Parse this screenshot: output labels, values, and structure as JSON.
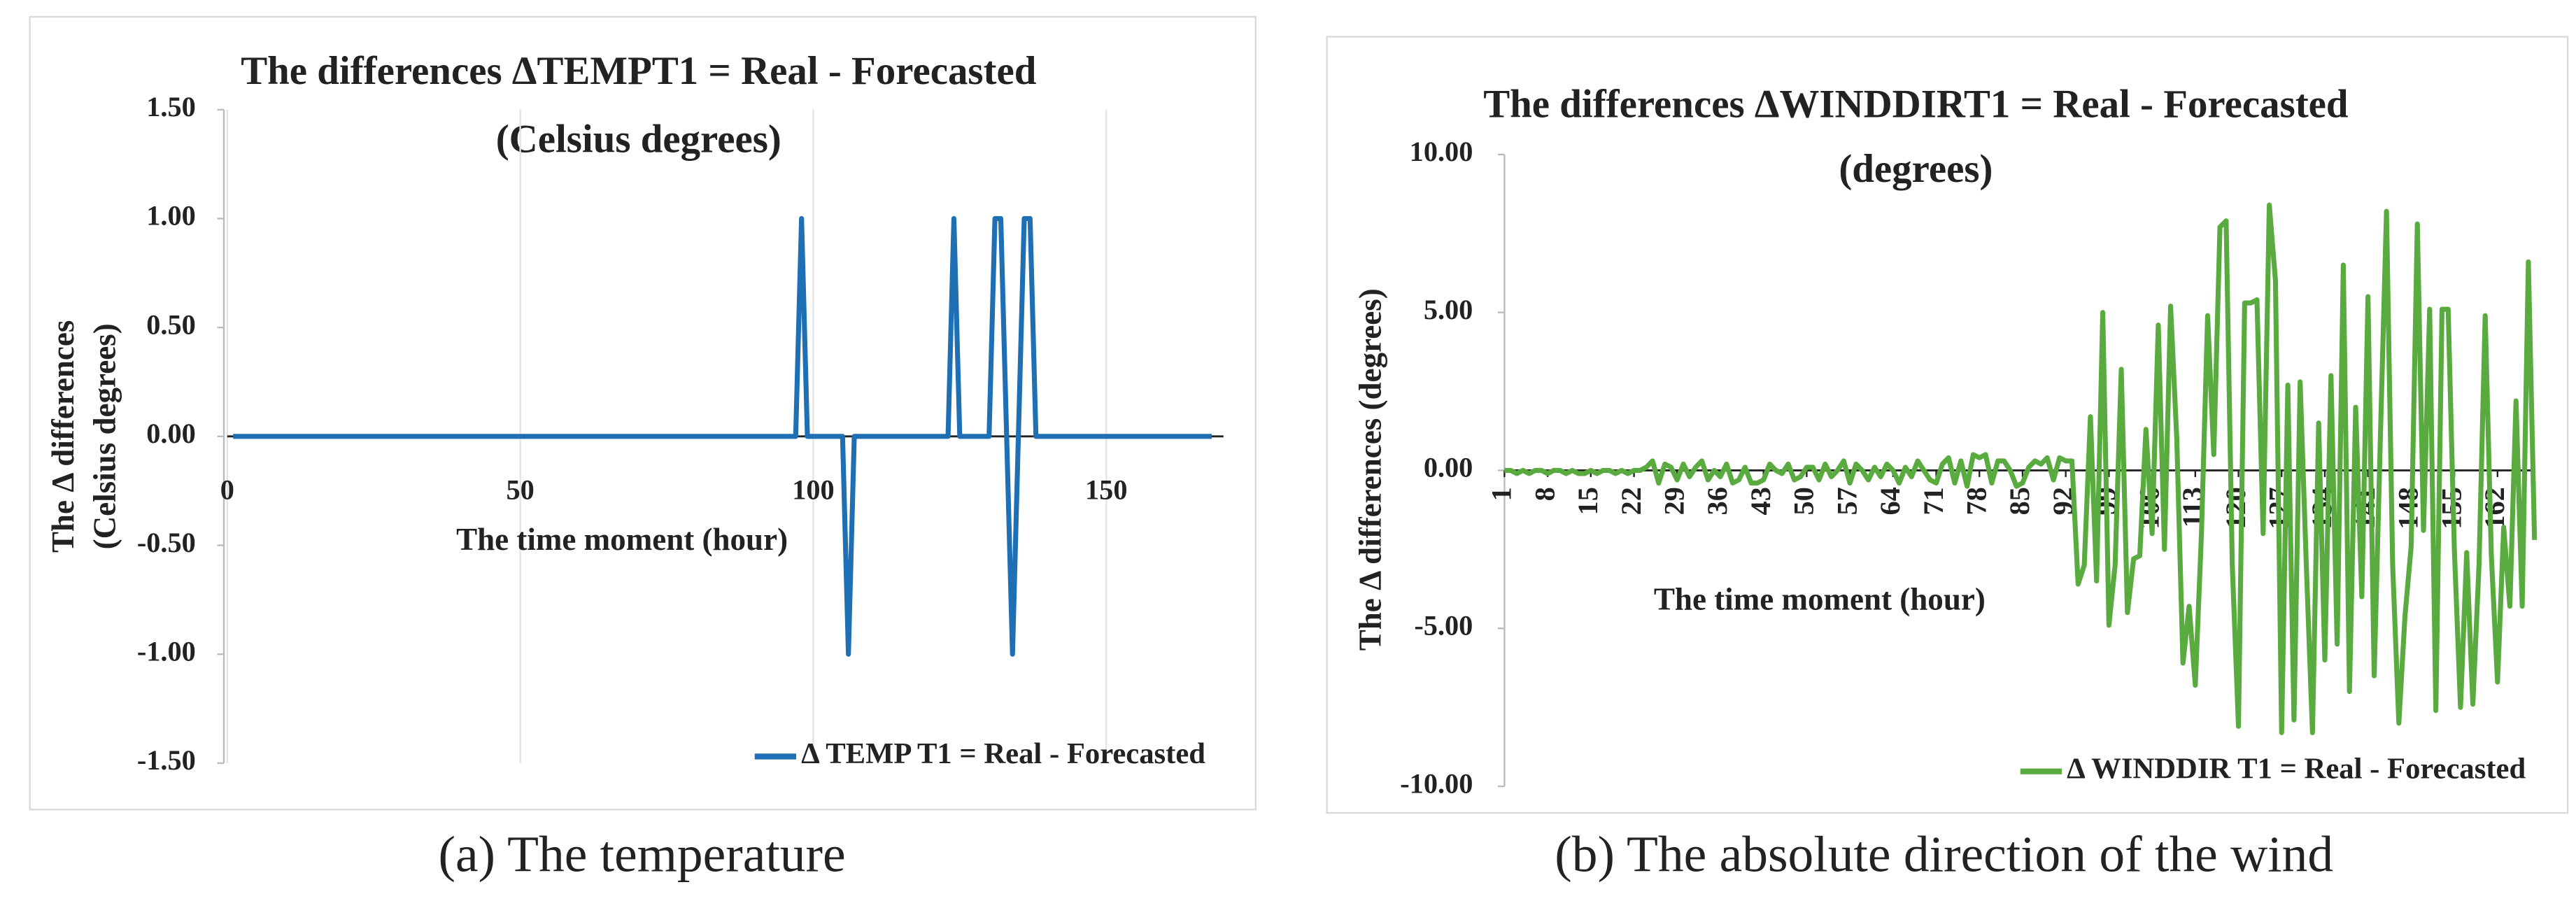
{
  "chart_data": [
    {
      "type": "line",
      "title": "The differences ΔTEMPT1 = Real - Forecasted",
      "subtitle": "(Celsius degrees)",
      "xlabel": "The time moment (hour)",
      "ylabel": [
        "The Δ differences",
        "(Celsius degrees)"
      ],
      "caption": "(a) The temperature",
      "xlim": [
        0,
        170
      ],
      "xticks": [
        0,
        50,
        100,
        150
      ],
      "ylim": [
        -1.5,
        1.5
      ],
      "yticks": [
        {
          "value": 1.5,
          "label": "1.50"
        },
        {
          "value": 1,
          "label": "1.00"
        },
        {
          "value": 0.5,
          "label": "0.50"
        },
        {
          "value": 0,
          "label": "0.00"
        },
        {
          "value": -0.5,
          "label": "-0.50"
        },
        {
          "value": -1,
          "label": "-1.00"
        },
        {
          "value": -1.5,
          "label": "-1.50"
        }
      ],
      "grid": "x",
      "legend": "lower right",
      "x": [
        1,
        2,
        3,
        4,
        5,
        6,
        7,
        8,
        9,
        10,
        11,
        12,
        13,
        14,
        15,
        16,
        17,
        18,
        19,
        20,
        21,
        22,
        23,
        24,
        25,
        26,
        27,
        28,
        29,
        30,
        31,
        32,
        33,
        34,
        35,
        36,
        37,
        38,
        39,
        40,
        41,
        42,
        43,
        44,
        45,
        46,
        47,
        48,
        49,
        50,
        51,
        52,
        53,
        54,
        55,
        56,
        57,
        58,
        59,
        60,
        61,
        62,
        63,
        64,
        65,
        66,
        67,
        68,
        69,
        70,
        71,
        72,
        73,
        74,
        75,
        76,
        77,
        78,
        79,
        80,
        81,
        82,
        83,
        84,
        85,
        86,
        87,
        88,
        89,
        90,
        91,
        92,
        93,
        94,
        95,
        96,
        97,
        98,
        99,
        100,
        101,
        102,
        103,
        104,
        105,
        106,
        107,
        108,
        109,
        110,
        111,
        112,
        113,
        114,
        115,
        116,
        117,
        118,
        119,
        120,
        121,
        122,
        123,
        124,
        125,
        126,
        127,
        128,
        129,
        130,
        131,
        132,
        133,
        134,
        135,
        136,
        137,
        138,
        139,
        140,
        141,
        142,
        143,
        144,
        145,
        146,
        147,
        148,
        149,
        150,
        151,
        152,
        153,
        154,
        155,
        156,
        157,
        158,
        159,
        160,
        161,
        162,
        163,
        164,
        165,
        166,
        167,
        168
      ],
      "series": [
        {
          "name": "Δ TEMP T1 = Real - Forecasted",
          "color": "#1f6fb4",
          "values": [
            0,
            0,
            0,
            0,
            0,
            0,
            0,
            0,
            0,
            0,
            0,
            0,
            0,
            0,
            0,
            0,
            0,
            0,
            0,
            0,
            0,
            0,
            0,
            0,
            0,
            0,
            0,
            0,
            0,
            0,
            0,
            0,
            0,
            0,
            0,
            0,
            0,
            0,
            0,
            0,
            0,
            0,
            0,
            0,
            0,
            0,
            0,
            0,
            0,
            0,
            0,
            0,
            0,
            0,
            0,
            0,
            0,
            0,
            0,
            0,
            0,
            0,
            0,
            0,
            0,
            0,
            0,
            0,
            0,
            0,
            0,
            0,
            0,
            0,
            0,
            0,
            0,
            0,
            0,
            0,
            0,
            0,
            0,
            0,
            0,
            0,
            0,
            0,
            0,
            0,
            0,
            0,
            0,
            0,
            0,
            0,
            0,
            1,
            0,
            0,
            0,
            0,
            0,
            0,
            0,
            -1,
            0,
            0,
            0,
            0,
            0,
            0,
            0,
            0,
            0,
            0,
            0,
            0,
            0,
            0,
            0,
            0,
            0,
            1,
            0,
            0,
            0,
            0,
            0,
            0,
            1,
            1,
            0,
            -1,
            0,
            1,
            1,
            0,
            0,
            0,
            0,
            0,
            0,
            0,
            0,
            0,
            0,
            0,
            0,
            0,
            0,
            0,
            0,
            0,
            0,
            0,
            0,
            0,
            0,
            0,
            0,
            0,
            0,
            0,
            0,
            0,
            0,
            0
          ]
        }
      ]
    },
    {
      "type": "line",
      "title": "The differences ΔWINDDIRT1 = Real - Forecasted",
      "subtitle": "(degrees)",
      "xlabel": "The time moment (hour)",
      "ylabel": [
        "The Δ differences (degrees)"
      ],
      "caption": "(b) The absolute direction of the wind",
      "ylim": [
        -10,
        10
      ],
      "yticks": [
        {
          "value": 10,
          "label": "10.00"
        },
        {
          "value": 5,
          "label": "5.00"
        },
        {
          "value": 0,
          "label": "0.00"
        },
        {
          "value": -5,
          "label": "-5.00"
        },
        {
          "value": -10,
          "label": "-10.00"
        }
      ],
      "legend": "lower right",
      "categories": [
        1,
        null,
        null,
        null,
        null,
        null,
        null,
        8,
        null,
        null,
        null,
        null,
        null,
        null,
        15,
        null,
        null,
        null,
        null,
        null,
        null,
        22,
        null,
        null,
        null,
        null,
        null,
        null,
        29,
        null,
        null,
        null,
        null,
        null,
        null,
        36,
        null,
        null,
        null,
        null,
        null,
        null,
        43,
        null,
        null,
        null,
        null,
        null,
        null,
        50,
        null,
        null,
        null,
        null,
        null,
        null,
        57,
        null,
        null,
        null,
        null,
        null,
        null,
        64,
        null,
        null,
        null,
        null,
        null,
        null,
        71,
        null,
        null,
        null,
        null,
        null,
        null,
        78,
        null,
        null,
        null,
        null,
        null,
        null,
        85,
        null,
        null,
        null,
        null,
        null,
        null,
        92,
        null,
        null,
        null,
        null,
        null,
        null,
        99,
        null,
        null,
        null,
        null,
        null,
        null,
        106,
        null,
        null,
        null,
        null,
        null,
        null,
        113,
        null,
        null,
        null,
        null,
        null,
        null,
        120,
        null,
        null,
        null,
        null,
        null,
        null,
        127,
        null,
        null,
        null,
        null,
        null,
        null,
        134,
        null,
        null,
        null,
        null,
        null,
        null,
        141,
        null,
        null,
        null,
        null,
        null,
        null,
        148,
        null,
        null,
        null,
        null,
        null,
        null,
        155,
        null,
        null,
        null,
        null,
        null,
        null,
        162,
        null,
        null,
        null,
        null,
        null,
        null
      ],
      "series": [
        {
          "name": "Δ WINDDIR T1 = Real - Forecasted",
          "color": "#5aab3f",
          "values": [
            0,
            0,
            -0.1,
            0,
            -0.1,
            0,
            0,
            -0.1,
            0,
            0,
            -0.1,
            0,
            -0.1,
            -0.1,
            0,
            -0.1,
            0,
            0,
            -0.1,
            0,
            -0.1,
            0,
            0,
            0.1,
            0.3,
            -0.4,
            0.2,
            0.1,
            -0.3,
            0.2,
            -0.2,
            0.1,
            0.3,
            -0.3,
            0,
            -0.2,
            0.2,
            -0.4,
            -0.3,
            0.1,
            -0.4,
            -0.4,
            -0.3,
            0.2,
            0,
            -0.1,
            0.2,
            -0.3,
            -0.2,
            0.1,
            0.1,
            -0.3,
            0.2,
            -0.2,
            0,
            0.3,
            -0.4,
            0.2,
            0,
            -0.3,
            0.1,
            -0.2,
            0.2,
            0,
            -0.4,
            0.1,
            -0.2,
            0.3,
            0,
            -0.3,
            -0.4,
            0.2,
            0.4,
            -0.4,
            0.3,
            -0.5,
            0.5,
            0.4,
            0.5,
            -0.4,
            0.3,
            0.3,
            0,
            -0.5,
            -0.4,
            0.1,
            0.3,
            0.2,
            0.4,
            -0.3,
            0.4,
            0.3,
            0.3,
            -3.6,
            -3.0,
            1.7,
            -3.5,
            5.0,
            -4.9,
            -3.0,
            3.2,
            -4.5,
            -2.8,
            -2.7,
            1.3,
            -2.0,
            4.6,
            -2.5,
            5.2,
            1.0,
            -6.1,
            -4.3,
            -6.8,
            -2.0,
            4.9,
            0.5,
            7.7,
            7.9,
            -3.0,
            -8.1,
            5.3,
            5.3,
            5.4,
            -2.0,
            8.4,
            6.0,
            -8.3,
            2.7,
            -7.9,
            2.8,
            -3.0,
            -8.3,
            1.5,
            -6.0,
            3.0,
            -5.5,
            6.5,
            -7.0,
            2.0,
            -4.0,
            5.5,
            -6.5,
            1.0,
            8.2,
            -3.0,
            -8.0,
            -4.6,
            -2.4,
            7.8,
            -1.9,
            5.1,
            -7.6,
            5.1,
            5.1,
            -2.5,
            -7.5,
            -2.6,
            -7.4,
            -3.0,
            4.9,
            -2.7,
            -6.7,
            -1.8,
            -4.3,
            2.2,
            -4.3,
            6.6,
            -2.2
          ]
        }
      ]
    }
  ]
}
